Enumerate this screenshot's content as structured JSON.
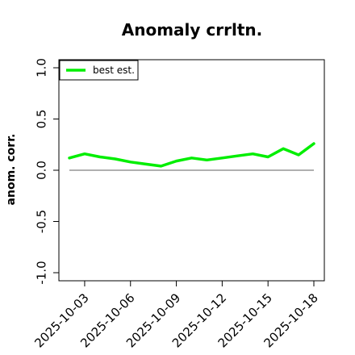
{
  "chart_data": {
    "type": "line",
    "title": "Anomaly crrltn.",
    "xlabel": "",
    "ylabel": "anom. corr.",
    "ylim": [
      -1.0,
      1.0
    ],
    "yticks": [
      "-1.0",
      "-0.5",
      "0.0",
      "0.5",
      "1.0"
    ],
    "xticks": [
      "2025-10-03",
      "2025-10-06",
      "2025-10-09",
      "2025-10-12",
      "2025-10-15",
      "2025-10-18"
    ],
    "x": [
      "2025-10-02",
      "2025-10-03",
      "2025-10-04",
      "2025-10-05",
      "2025-10-06",
      "2025-10-07",
      "2025-10-08",
      "2025-10-09",
      "2025-10-10",
      "2025-10-11",
      "2025-10-12",
      "2025-10-13",
      "2025-10-14",
      "2025-10-15",
      "2025-10-16",
      "2025-10-17",
      "2025-10-18"
    ],
    "series": [
      {
        "name": "best est.",
        "color": "#00ee00",
        "values": [
          0.12,
          0.16,
          0.13,
          0.11,
          0.08,
          0.06,
          0.04,
          0.09,
          0.12,
          0.1,
          0.12,
          0.14,
          0.16,
          0.13,
          0.21,
          0.15,
          0.26
        ]
      }
    ],
    "reference_line": {
      "y": 0.0,
      "color": "#808080"
    },
    "legend": "top-left",
    "grid": false
  }
}
